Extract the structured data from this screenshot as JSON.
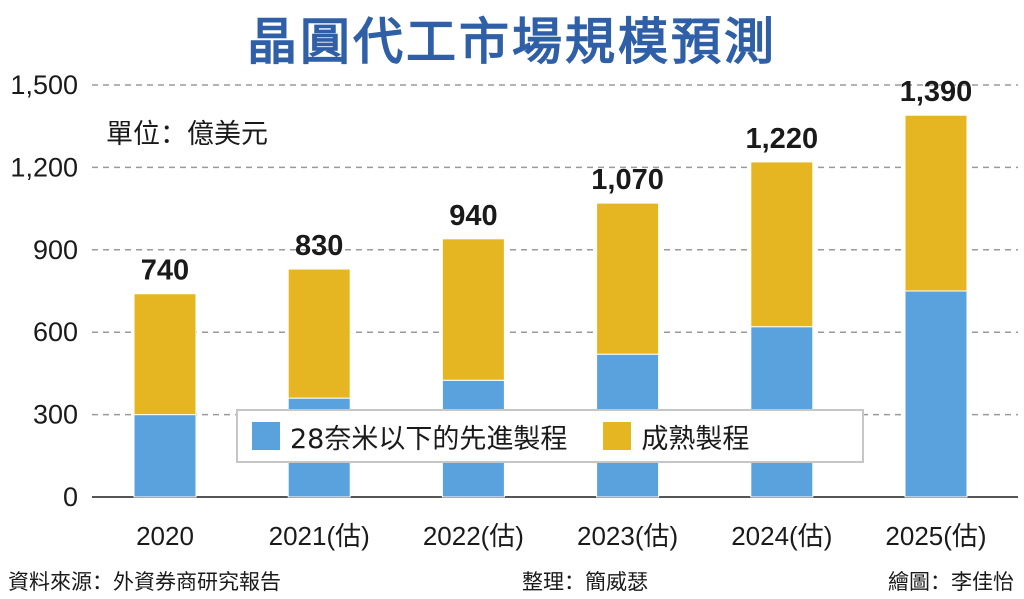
{
  "chart_data": {
    "type": "bar",
    "stacked": true,
    "title": "晶圓代工市場規模預測",
    "unit_label": "單位：億美元",
    "categories": [
      "2020",
      "2021(估)",
      "2022(估)",
      "2023(估)",
      "2024(估)",
      "2025(估)"
    ],
    "series": [
      {
        "name": "28奈米以下的先進製程",
        "color": "#5aa2dd",
        "values": [
          300,
          360,
          425,
          520,
          620,
          750
        ]
      },
      {
        "name": "成熟製程",
        "color": "#e5b622",
        "values": [
          440,
          470,
          515,
          550,
          600,
          640
        ]
      }
    ],
    "totals": [
      "740",
      "830",
      "940",
      "1,070",
      "1,220",
      "1,390"
    ],
    "ylim": [
      0,
      1500
    ],
    "yticks": [
      {
        "value": 0,
        "label": "0"
      },
      {
        "value": 300,
        "label": "300"
      },
      {
        "value": 600,
        "label": "600"
      },
      {
        "value": 900,
        "label": "900"
      },
      {
        "value": 1200,
        "label": "1,200"
      },
      {
        "value": 1500,
        "label": "1,500"
      }
    ],
    "grid": true,
    "legend": "bottom-center"
  },
  "footer": {
    "source": "資料來源：外資券商研究報告",
    "editor": "整理：簡威瑟",
    "illustrator": "繪圖：李佳怡"
  }
}
